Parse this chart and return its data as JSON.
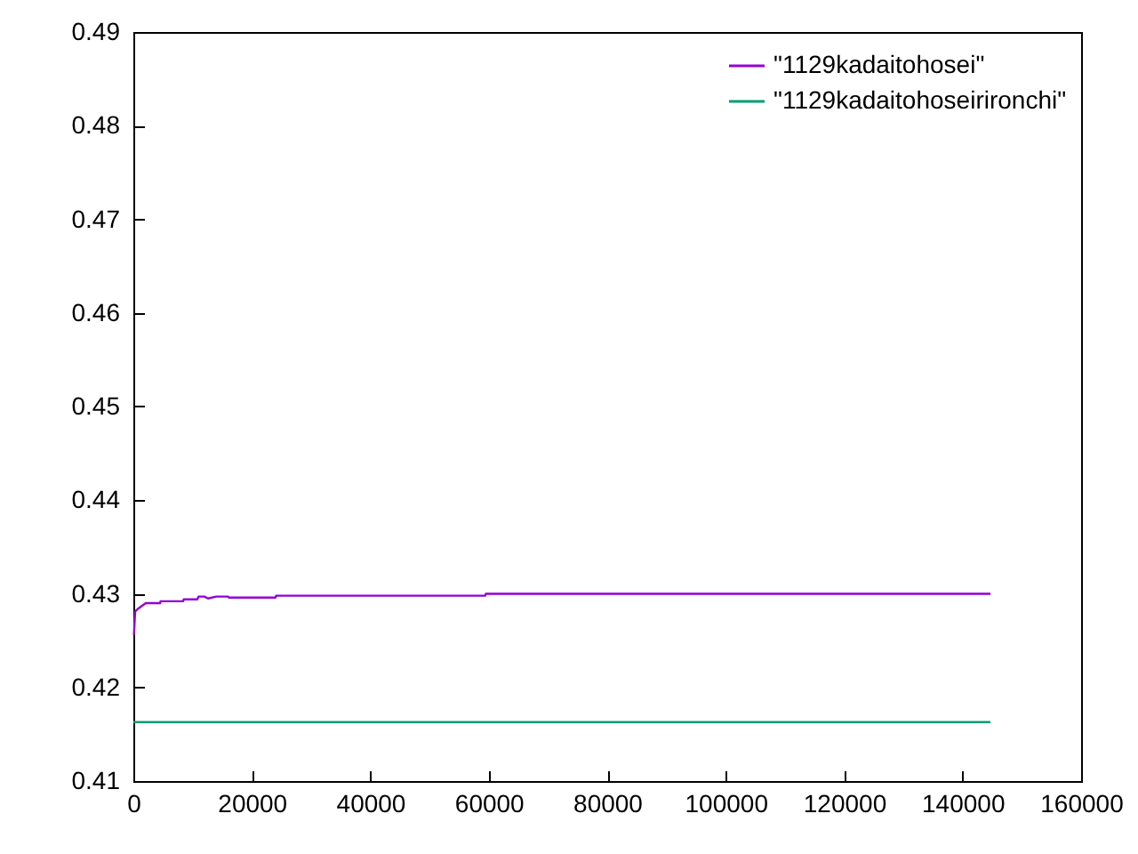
{
  "chart_data": {
    "type": "line",
    "xlim": [
      0,
      160000
    ],
    "xticks": [
      0,
      20000,
      40000,
      60000,
      80000,
      100000,
      120000,
      140000,
      160000
    ],
    "ylim": [
      0.41,
      0.49
    ],
    "yticks": [
      0.41,
      0.42,
      0.43,
      0.44,
      0.45,
      0.46,
      0.47,
      0.48,
      0.49
    ],
    "grid": false,
    "legend": "top right",
    "line_style": "solid",
    "series": [
      {
        "name": "\"1129kadaitohosei\"",
        "color": "#9400d3",
        "x": [
          100,
          300,
          600,
          1200,
          2100,
          4500,
          4600,
          8400,
          8500,
          10800,
          11000,
          12000,
          12600,
          14000,
          16000,
          16100,
          24000,
          24100,
          59400,
          59500,
          144700
        ],
        "values": [
          0.4256,
          0.4281,
          0.4283,
          0.4286,
          0.429,
          0.429,
          0.4292,
          0.4292,
          0.4294,
          0.4294,
          0.4297,
          0.4297,
          0.4295,
          0.4297,
          0.4297,
          0.4296,
          0.4296,
          0.4298,
          0.4298,
          0.43,
          0.43
        ]
      },
      {
        "name": "\"1129kadaitohoseirironchi\"",
        "color": "#009e73",
        "x": [
          0,
          144700
        ],
        "values": [
          0.4163,
          0.4163
        ]
      }
    ]
  }
}
